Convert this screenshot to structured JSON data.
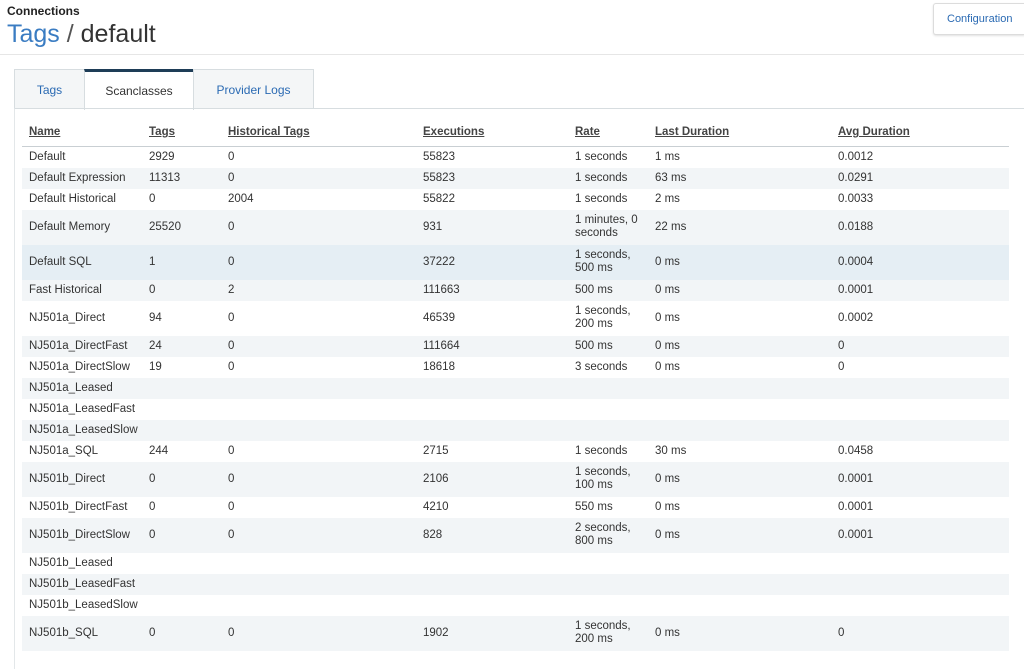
{
  "header": {
    "breadcrumb": "Connections",
    "title_link": "Tags",
    "title_sep": " / ",
    "title_page": "default",
    "config_button": "Configuration"
  },
  "tabs": [
    {
      "label": "Tags",
      "active": false
    },
    {
      "label": "Scanclasses",
      "active": true
    },
    {
      "label": "Provider Logs",
      "active": false
    }
  ],
  "table": {
    "columns": [
      "Name",
      "Tags",
      "Historical Tags",
      "Executions",
      "Rate",
      "Last Duration",
      "Avg Duration"
    ],
    "rows": [
      {
        "name": "Default",
        "tags": "2929",
        "hist": "0",
        "exec": "55823",
        "rate": "1 seconds",
        "last": "1 ms",
        "avg": "0.0012"
      },
      {
        "name": "Default Expression",
        "tags": "11313",
        "hist": "0",
        "exec": "55823",
        "rate": "1 seconds",
        "last": "63 ms",
        "avg": "0.0291"
      },
      {
        "name": "Default Historical",
        "tags": "0",
        "hist": "2004",
        "exec": "55822",
        "rate": "1 seconds",
        "last": "2 ms",
        "avg": "0.0033"
      },
      {
        "name": "Default Memory",
        "tags": "25520",
        "hist": "0",
        "exec": "931",
        "rate": "1 minutes, 0 seconds",
        "last": "22 ms",
        "avg": "0.0188"
      },
      {
        "name": "Default SQL",
        "tags": "1",
        "hist": "0",
        "exec": "37222",
        "rate": "1 seconds, 500 ms",
        "last": "0 ms",
        "avg": "0.0004"
      },
      {
        "name": "Fast Historical",
        "tags": "0",
        "hist": "2",
        "exec": "111663",
        "rate": "500 ms",
        "last": "0 ms",
        "avg": "0.0001"
      },
      {
        "name": "NJ501a_Direct",
        "tags": "94",
        "hist": "0",
        "exec": "46539",
        "rate": "1 seconds, 200 ms",
        "last": "0 ms",
        "avg": "0.0002"
      },
      {
        "name": "NJ501a_DirectFast",
        "tags": "24",
        "hist": "0",
        "exec": "111664",
        "rate": "500 ms",
        "last": "0 ms",
        "avg": "0"
      },
      {
        "name": "NJ501a_DirectSlow",
        "tags": "19",
        "hist": "0",
        "exec": "18618",
        "rate": "3 seconds",
        "last": "0 ms",
        "avg": "0"
      },
      {
        "name": "NJ501a_Leased",
        "tags": "",
        "hist": "",
        "exec": "",
        "rate": "",
        "last": "",
        "avg": ""
      },
      {
        "name": "NJ501a_LeasedFast",
        "tags": "",
        "hist": "",
        "exec": "",
        "rate": "",
        "last": "",
        "avg": ""
      },
      {
        "name": "NJ501a_LeasedSlow",
        "tags": "",
        "hist": "",
        "exec": "",
        "rate": "",
        "last": "",
        "avg": ""
      },
      {
        "name": "NJ501a_SQL",
        "tags": "244",
        "hist": "0",
        "exec": "2715",
        "rate": "1 seconds",
        "last": "30 ms",
        "avg": "0.0458"
      },
      {
        "name": "NJ501b_Direct",
        "tags": "0",
        "hist": "0",
        "exec": "2106",
        "rate": "1 seconds, 100 ms",
        "last": "0 ms",
        "avg": "0.0001"
      },
      {
        "name": "NJ501b_DirectFast",
        "tags": "0",
        "hist": "0",
        "exec": "4210",
        "rate": "550 ms",
        "last": "0 ms",
        "avg": "0.0001"
      },
      {
        "name": "NJ501b_DirectSlow",
        "tags": "0",
        "hist": "0",
        "exec": "828",
        "rate": "2 seconds, 800 ms",
        "last": "0 ms",
        "avg": "0.0001"
      },
      {
        "name": "NJ501b_Leased",
        "tags": "",
        "hist": "",
        "exec": "",
        "rate": "",
        "last": "",
        "avg": ""
      },
      {
        "name": "NJ501b_LeasedFast",
        "tags": "",
        "hist": "",
        "exec": "",
        "rate": "",
        "last": "",
        "avg": ""
      },
      {
        "name": "NJ501b_LeasedSlow",
        "tags": "",
        "hist": "",
        "exec": "",
        "rate": "",
        "last": "",
        "avg": ""
      },
      {
        "name": "NJ501b_SQL",
        "tags": "0",
        "hist": "0",
        "exec": "1902",
        "rate": "1 seconds, 200 ms",
        "last": "0 ms",
        "avg": "0"
      }
    ],
    "highlighted_row": "Default SQL"
  },
  "colors": {
    "link": "#3a7cc2",
    "tab_active_bar": "#1e3d57",
    "row_alt": "#f2f5f7",
    "row_highlight": "#e5eef4"
  }
}
